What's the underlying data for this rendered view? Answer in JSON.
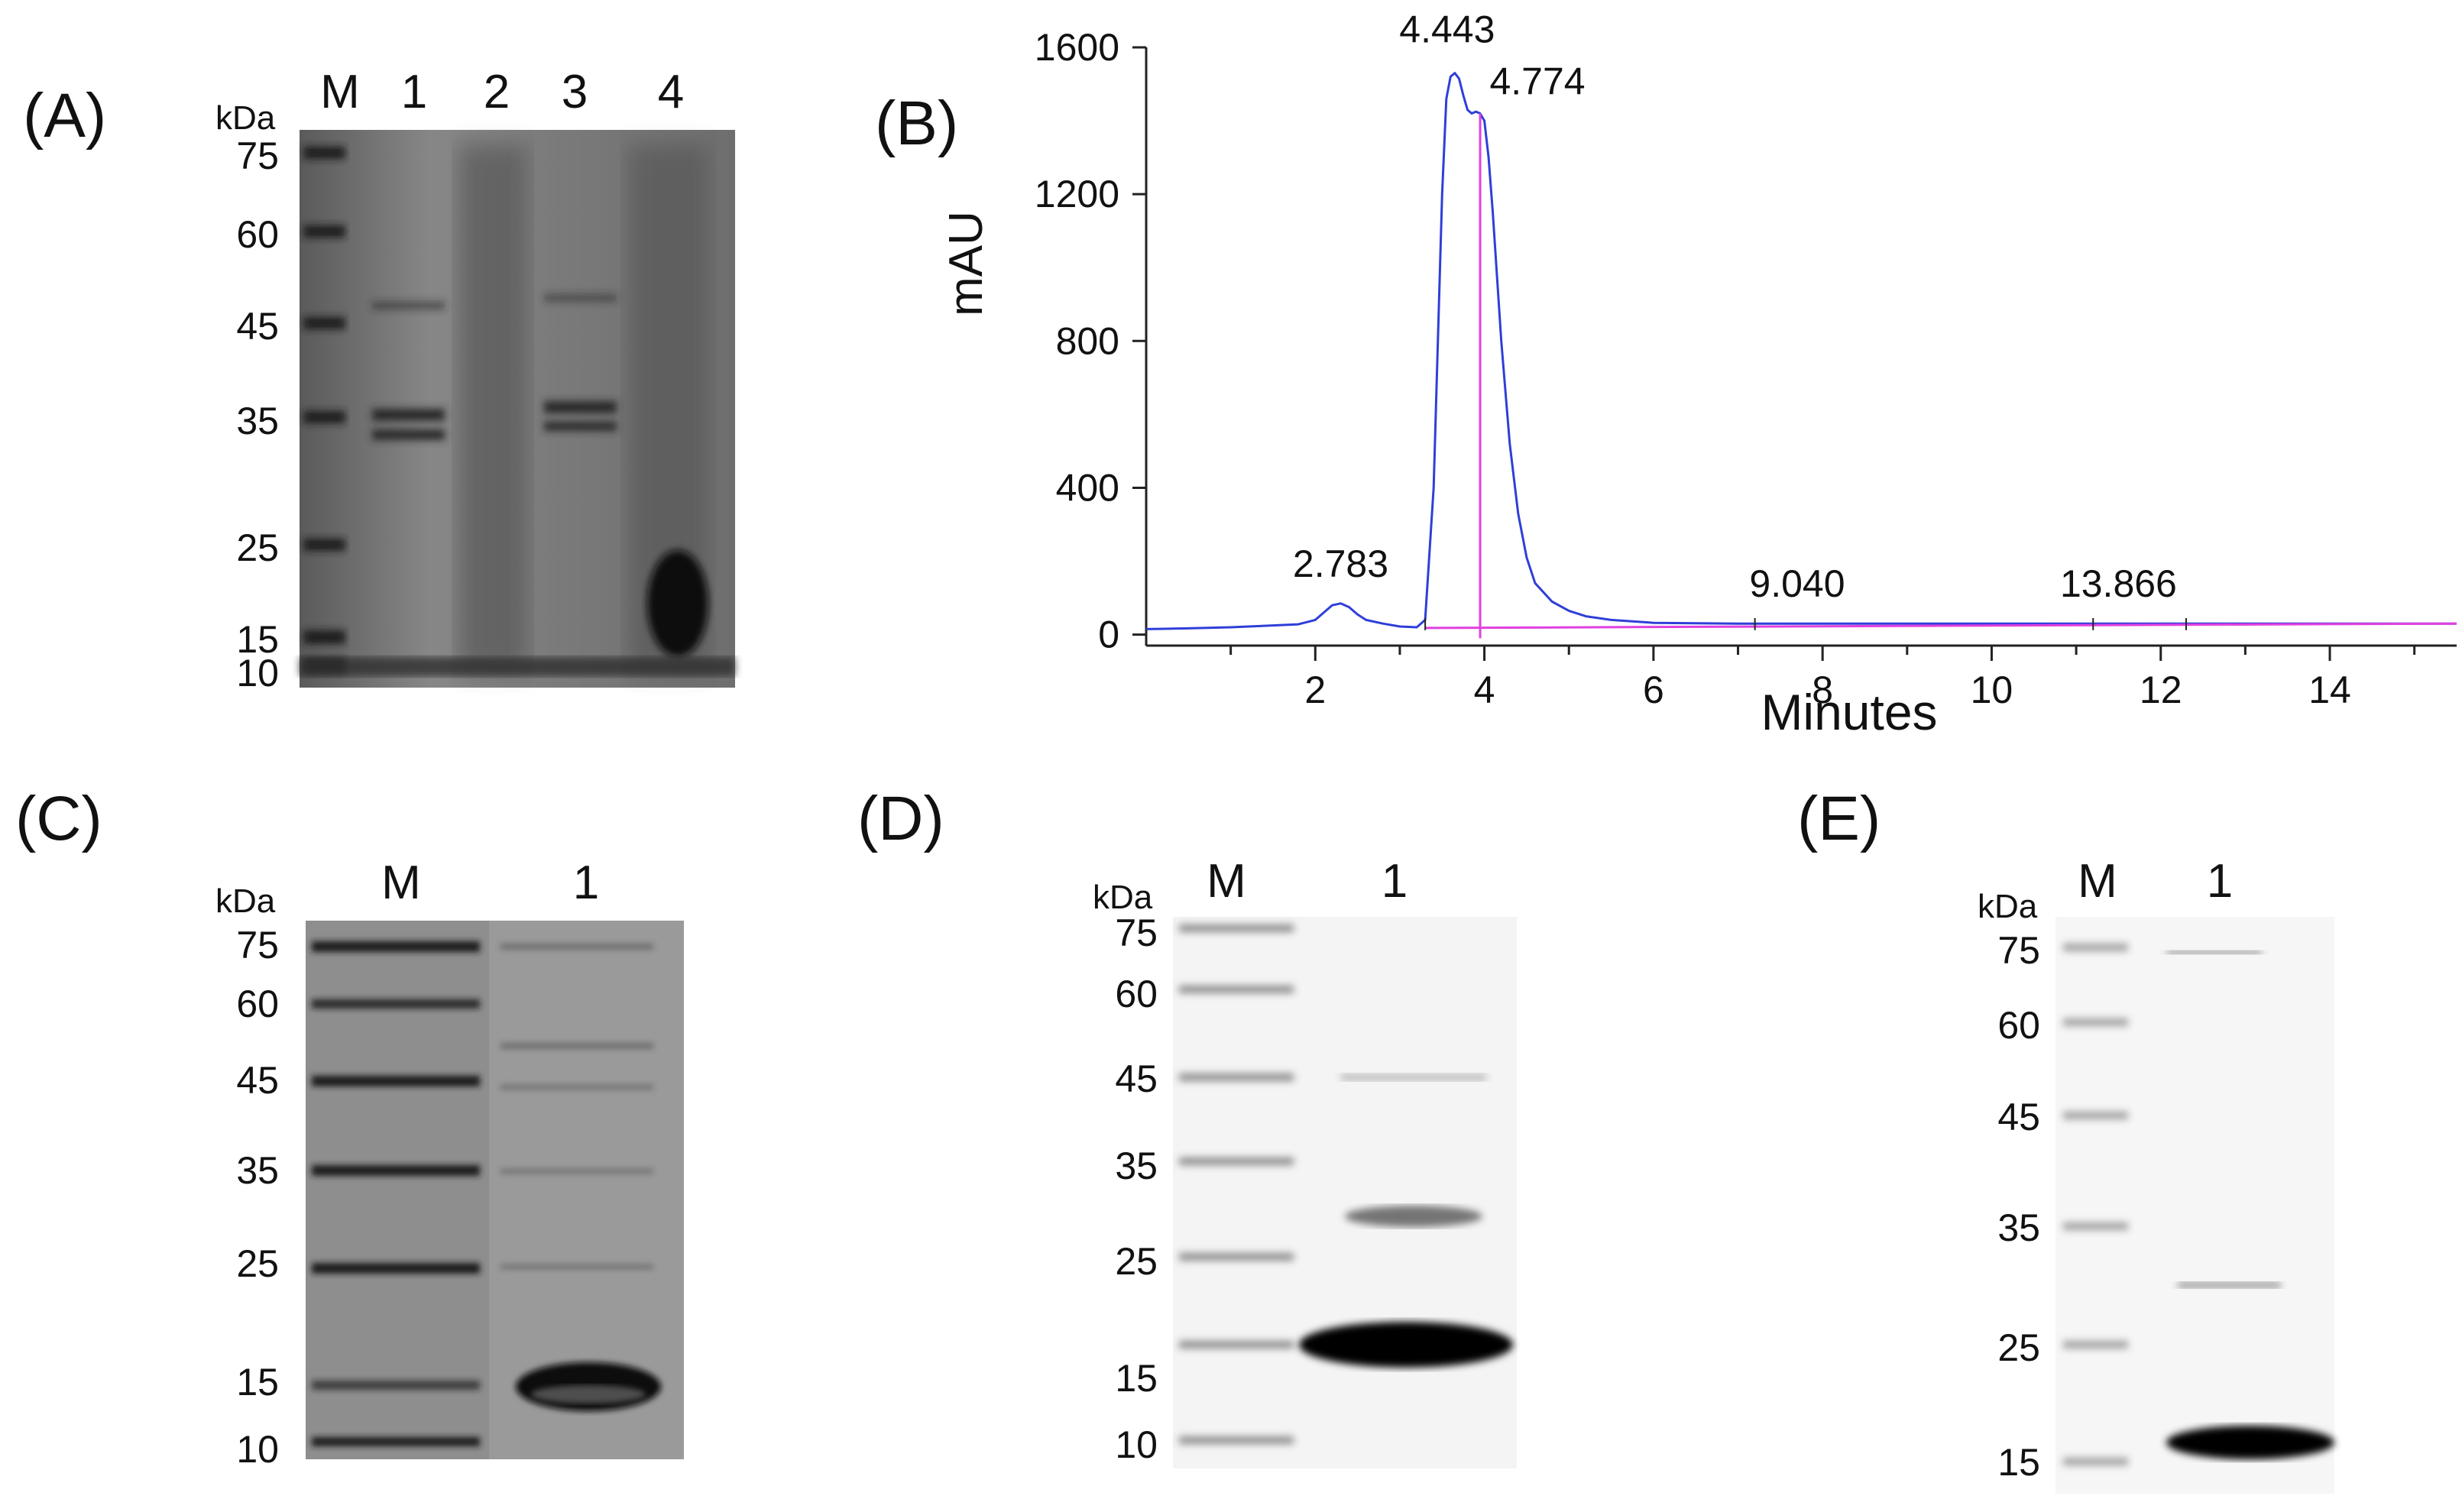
{
  "panels": {
    "A": {
      "label": "(A)",
      "unit": "kDa",
      "lanes": [
        "M",
        "1",
        "2",
        "3",
        "4"
      ],
      "markers": [
        "75",
        "60",
        "45",
        "35",
        "25",
        "15",
        "10"
      ]
    },
    "B": {
      "label": "(B)",
      "ylabel": "mAU",
      "xlabel": "Minutes"
    },
    "C": {
      "label": "(C)",
      "unit": "kDa",
      "lanes": [
        "M",
        "1"
      ],
      "markers": [
        "75",
        "60",
        "45",
        "35",
        "25",
        "15",
        "10"
      ]
    },
    "D": {
      "label": "(D)",
      "unit": "kDa",
      "lanes": [
        "M",
        "1"
      ],
      "markers": [
        "75",
        "60",
        "45",
        "35",
        "25",
        "15",
        "10"
      ]
    },
    "E": {
      "label": "(E)",
      "unit": "kDa",
      "lanes": [
        "M",
        "1"
      ],
      "markers": [
        "75",
        "60",
        "45",
        "35",
        "25",
        "15"
      ]
    }
  },
  "chart_data": {
    "type": "line",
    "xlabel": "Minutes",
    "ylabel": "mAU",
    "xlim": [
      0,
      15.5
    ],
    "ylim": [
      -30,
      1600
    ],
    "xticks": [
      2,
      4,
      6,
      8,
      10,
      12,
      14
    ],
    "yticks": [
      0,
      400,
      800,
      1200,
      1600
    ],
    "peak_labels": [
      {
        "text": "2.783",
        "x": 2.3,
        "y": 85
      },
      {
        "text": "4.443",
        "x": 3.65,
        "y": 1530
      },
      {
        "text": "4.774",
        "x": 3.95,
        "y": 1420
      },
      {
        "text": "9.040",
        "x": 7.7,
        "y": 30
      },
      {
        "text": "13.866",
        "x": 11.5,
        "y": 30
      }
    ],
    "series": [
      {
        "color": "#2f3fd8",
        "x": [
          0,
          0.5,
          1.0,
          1.5,
          1.8,
          2.0,
          2.1,
          2.2,
          2.3,
          2.4,
          2.5,
          2.6,
          2.8,
          3.0,
          3.2,
          3.3,
          3.4,
          3.5,
          3.55,
          3.6,
          3.65,
          3.7,
          3.75,
          3.8,
          3.85,
          3.9,
          3.95,
          4.0,
          4.05,
          4.1,
          4.2,
          4.3,
          4.4,
          4.5,
          4.6,
          4.8,
          5.0,
          5.2,
          5.5,
          6.0,
          7.0,
          8.0,
          10.0,
          12.0,
          14.0,
          15.5
        ],
        "y": [
          15,
          17,
          20,
          25,
          28,
          40,
          60,
          80,
          85,
          75,
          55,
          40,
          30,
          22,
          20,
          40,
          400,
          1200,
          1460,
          1520,
          1530,
          1515,
          1470,
          1430,
          1420,
          1425,
          1420,
          1400,
          1300,
          1150,
          800,
          520,
          330,
          210,
          140,
          90,
          65,
          50,
          40,
          32,
          30,
          30,
          30,
          30,
          30,
          30
        ]
      },
      {
        "color": "#e040e0",
        "x": [
          3.3,
          15.5
        ],
        "y": [
          18,
          30
        ]
      }
    ]
  }
}
